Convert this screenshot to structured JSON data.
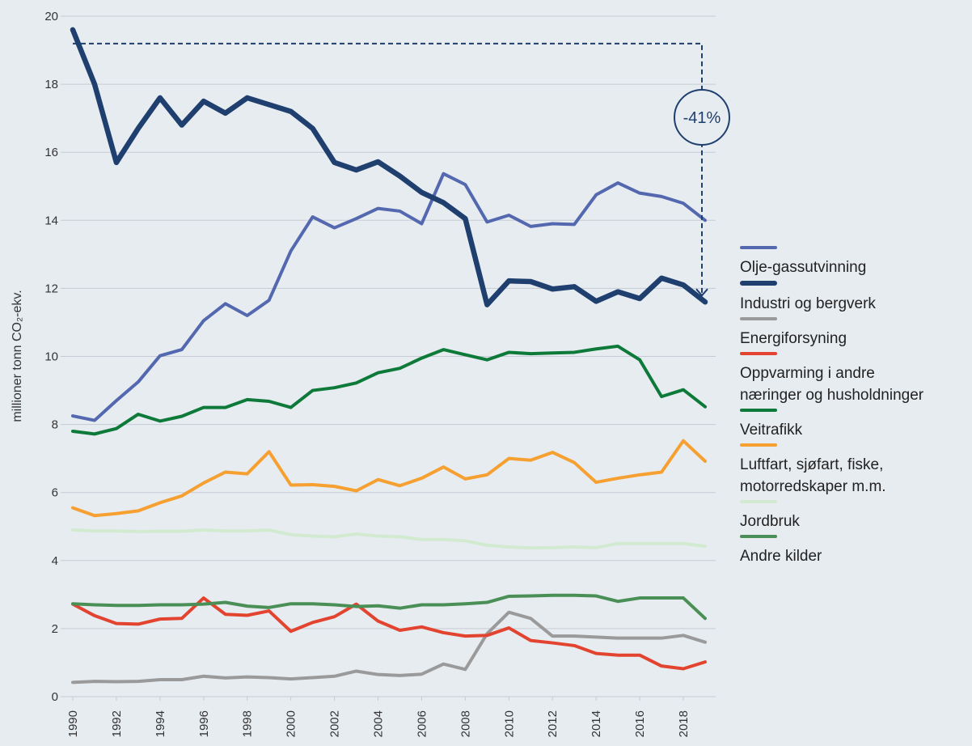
{
  "chart_data": {
    "type": "line",
    "y_label": "millioner tonn CO₂-ekv.",
    "annotation": "-41%",
    "x": [
      1990,
      1991,
      1992,
      1993,
      1994,
      1995,
      1996,
      1997,
      1998,
      1999,
      2000,
      2001,
      2002,
      2003,
      2004,
      2005,
      2006,
      2007,
      2008,
      2009,
      2010,
      2011,
      2012,
      2013,
      2014,
      2015,
      2016,
      2017,
      2018,
      2019
    ],
    "xlim": [
      1990,
      2019
    ],
    "xticks": [
      1990,
      1992,
      1994,
      1996,
      1998,
      2000,
      2002,
      2004,
      2006,
      2008,
      2010,
      2012,
      2014,
      2016,
      2018
    ],
    "ylim": [
      0,
      20
    ],
    "yticks": [
      0,
      2,
      4,
      6,
      8,
      10,
      12,
      14,
      16,
      18,
      20
    ],
    "grid": true,
    "legend": "right",
    "series": [
      {
        "name": "Olje-gassutvinning",
        "color": "#5468b0",
        "width": 4,
        "values": [
          8.25,
          8.12,
          8.7,
          9.25,
          10.02,
          10.2,
          11.05,
          11.55,
          11.2,
          11.65,
          13.1,
          14.1,
          13.78,
          14.05,
          14.35,
          14.27,
          13.9,
          15.37,
          15.05,
          13.95,
          14.15,
          13.82,
          13.9,
          13.88,
          14.75,
          15.1,
          14.8,
          14.7,
          14.5,
          14.0
        ]
      },
      {
        "name": "Industri og bergverk",
        "color": "#1f3f6e",
        "width": 6.5,
        "values": [
          19.6,
          18.0,
          15.7,
          16.7,
          17.6,
          16.8,
          17.5,
          17.15,
          17.6,
          17.4,
          17.2,
          16.7,
          15.7,
          15.48,
          15.72,
          15.3,
          14.82,
          14.52,
          14.05,
          11.52,
          12.22,
          12.2,
          11.98,
          12.05,
          11.62,
          11.9,
          11.7,
          12.3,
          12.1,
          11.6
        ]
      },
      {
        "name": "Energiforsyning",
        "color": "#9a9a9a",
        "width": 4,
        "values": [
          0.42,
          0.45,
          0.44,
          0.45,
          0.5,
          0.5,
          0.6,
          0.55,
          0.58,
          0.56,
          0.52,
          0.56,
          0.6,
          0.75,
          0.65,
          0.62,
          0.66,
          0.96,
          0.8,
          1.85,
          2.48,
          2.3,
          1.78,
          1.78,
          1.75,
          1.72,
          1.72,
          1.72,
          1.8,
          1.6
        ]
      },
      {
        "name": "Oppvarming i andre\nnæringer og husholdninger",
        "color": "#e2442f",
        "width": 4,
        "values": [
          2.72,
          2.38,
          2.15,
          2.13,
          2.28,
          2.3,
          2.9,
          2.42,
          2.39,
          2.52,
          1.92,
          2.18,
          2.35,
          2.72,
          2.22,
          1.95,
          2.05,
          1.88,
          1.78,
          1.8,
          2.02,
          1.65,
          1.58,
          1.5,
          1.27,
          1.22,
          1.22,
          0.9,
          0.82,
          1.02
        ]
      },
      {
        "name": "Veitrafikk",
        "color": "#0e7a3a",
        "width": 4,
        "values": [
          7.8,
          7.72,
          7.88,
          8.3,
          8.1,
          8.24,
          8.5,
          8.5,
          8.73,
          8.68,
          8.5,
          9.0,
          9.08,
          9.22,
          9.52,
          9.65,
          9.95,
          10.2,
          10.05,
          9.9,
          10.12,
          10.08,
          10.1,
          10.12,
          10.22,
          10.3,
          9.9,
          8.82,
          9.02,
          8.52
        ]
      },
      {
        "name": "Luftfart, sjøfart, fiske,\nmotorredskaper m.m.",
        "color": "#f5a031",
        "width": 4,
        "values": [
          5.55,
          5.32,
          5.38,
          5.46,
          5.7,
          5.9,
          6.28,
          6.6,
          6.55,
          7.2,
          6.22,
          6.23,
          6.18,
          6.05,
          6.38,
          6.2,
          6.42,
          6.75,
          6.4,
          6.52,
          7.0,
          6.95,
          7.18,
          6.88,
          6.3,
          6.42,
          6.52,
          6.6,
          7.52,
          6.92
        ]
      },
      {
        "name": "Jordbruk",
        "color": "#d2ead0",
        "width": 4,
        "values": [
          4.9,
          4.87,
          4.87,
          4.85,
          4.86,
          4.86,
          4.9,
          4.87,
          4.87,
          4.9,
          4.76,
          4.72,
          4.7,
          4.78,
          4.72,
          4.7,
          4.62,
          4.62,
          4.58,
          4.45,
          4.4,
          4.37,
          4.38,
          4.4,
          4.38,
          4.5,
          4.5,
          4.5,
          4.5,
          4.42
        ]
      },
      {
        "name": "Andre kilder",
        "color": "#4a8f55",
        "width": 4,
        "values": [
          2.73,
          2.7,
          2.68,
          2.68,
          2.7,
          2.7,
          2.72,
          2.77,
          2.66,
          2.62,
          2.73,
          2.73,
          2.7,
          2.65,
          2.67,
          2.6,
          2.7,
          2.7,
          2.73,
          2.77,
          2.95,
          2.96,
          2.98,
          2.98,
          2.96,
          2.8,
          2.9,
          2.9,
          2.9,
          2.3
        ]
      }
    ]
  }
}
